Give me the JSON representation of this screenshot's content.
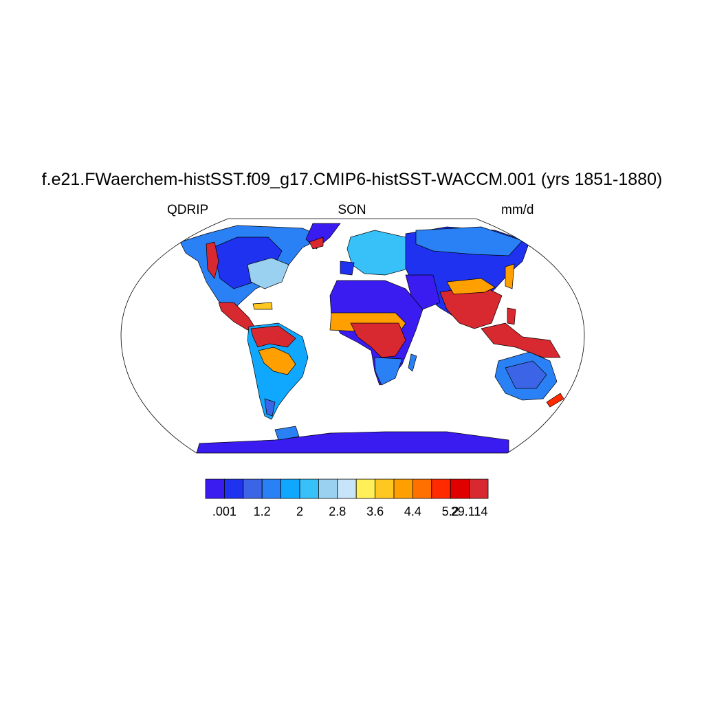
{
  "title": "f.e21.FWaerchem-histSST.f09_g17.CMIP6-histSST-WACCM.001 (yrs 1851-1880)",
  "subtitle_left": "QDRIP",
  "subtitle_center": "SON",
  "subtitle_right": "mm/d",
  "map": {
    "projection": "robinson",
    "field": "QDRIP",
    "season": "SON",
    "units": "mm/d",
    "ocean_color": "#ffffff",
    "coastline_color": "#000000"
  },
  "legend": {
    "colors": [
      "#3a1cf0",
      "#1e32f0",
      "#3c64e6",
      "#2a80f5",
      "#10a8ff",
      "#38c0f8",
      "#9ad0f0",
      "#c8e4f8",
      "#fff05a",
      "#ffc820",
      "#ffa000",
      "#ff7000",
      "#ff2a00",
      "#e00000",
      "#d82830"
    ],
    "labels": [
      ".001",
      "",
      "1.2",
      "",
      "2",
      "",
      "2.8",
      "",
      "3.6",
      "",
      "4.4",
      "",
      "5.2",
      "29.114"
    ]
  }
}
